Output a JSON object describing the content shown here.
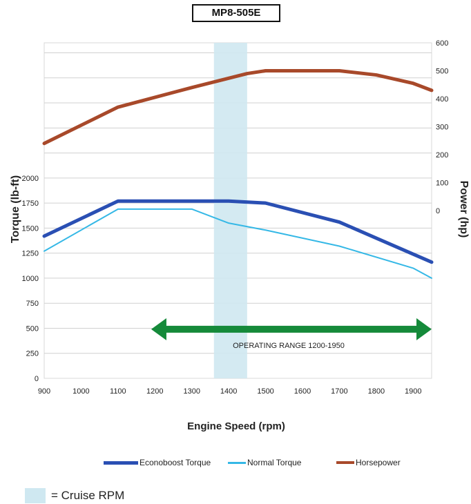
{
  "chart_data": {
    "type": "line",
    "title": "MP8-505E",
    "xlabel": "Engine Speed (rpm)",
    "ylabel_left": "Torque (lb-ft)",
    "ylabel_right": "Power (hp)",
    "xlim": [
      900,
      1950
    ],
    "x_ticks": [
      900,
      1000,
      1100,
      1200,
      1300,
      1400,
      1500,
      1600,
      1700,
      1800,
      1900
    ],
    "ylim_left": [
      0,
      3350
    ],
    "y_ticks_left": [
      0,
      250,
      500,
      750,
      1000,
      1250,
      1500,
      1750,
      2000
    ],
    "y_ticks_right": [
      0,
      100,
      200,
      300,
      400,
      500,
      600
    ],
    "grid": true,
    "series": [
      {
        "name": "Econoboost Torque",
        "axis": "left",
        "color": "#2a4fb3",
        "x": [
          900,
          1100,
          1400,
          1500,
          1700,
          1800,
          1950
        ],
        "y": [
          1420,
          1770,
          1770,
          1750,
          1560,
          1400,
          1160
        ]
      },
      {
        "name": "Normal Torque",
        "axis": "left",
        "color": "#35b8e6",
        "x": [
          900,
          1100,
          1300,
          1400,
          1500,
          1700,
          1900,
          1950
        ],
        "y": [
          1270,
          1690,
          1690,
          1550,
          1480,
          1320,
          1100,
          1000
        ]
      },
      {
        "name": "Horsepower",
        "axis": "right",
        "color": "#a8492a",
        "x": [
          900,
          1100,
          1300,
          1450,
          1500,
          1700,
          1800,
          1900,
          1950
        ],
        "y": [
          240,
          370,
          440,
          490,
          500,
          500,
          485,
          455,
          430
        ]
      }
    ],
    "cruise_band": {
      "x_start": 1360,
      "x_end": 1450,
      "color": "#cfe8f1"
    },
    "operating_range": {
      "label": "OPERATING RANGE 1200-1950",
      "x_start": 1190,
      "x_end": 1950,
      "y": 490,
      "color": "#158a3a"
    },
    "legend": {
      "placement": "bottom"
    },
    "cruise_key_label": "= Cruise RPM"
  }
}
